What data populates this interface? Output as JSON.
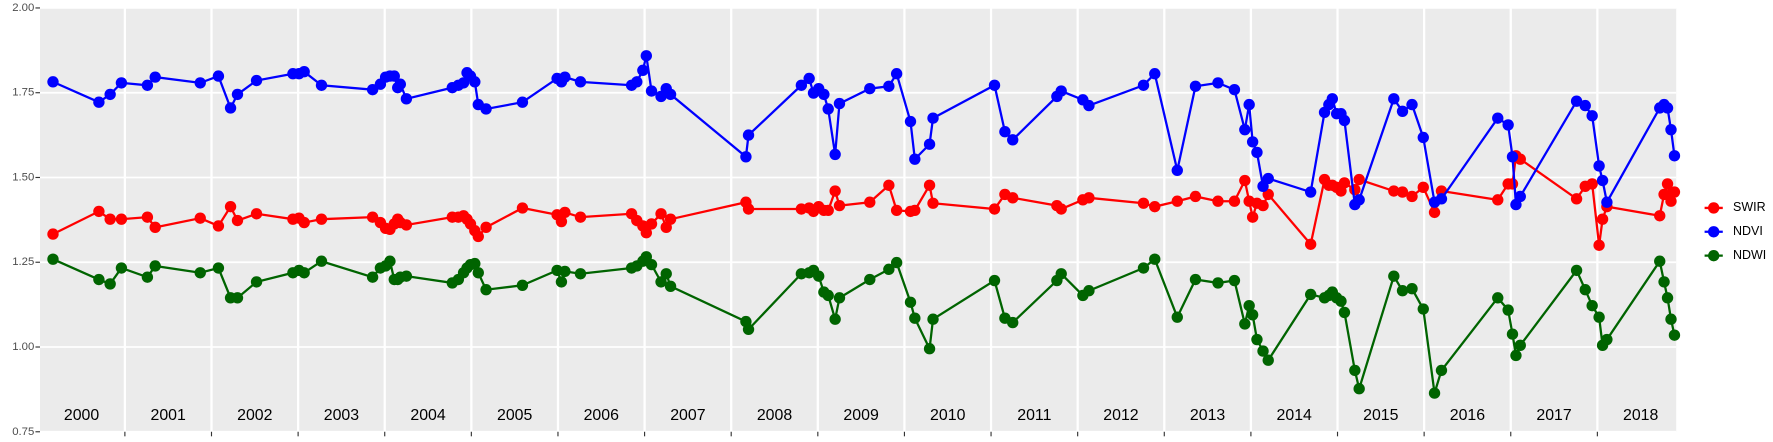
{
  "chart_data": {
    "type": "line",
    "x": [
      2000.17,
      2000.7,
      2000.83,
      2000.96,
      2001.26,
      2001.35,
      2001.87,
      2002.08,
      2002.22,
      2002.3,
      2002.52,
      2002.94,
      2003.01,
      2003.07,
      2003.27,
      2003.86,
      2003.95,
      2004.01,
      2004.06,
      2004.11,
      2004.15,
      2004.18,
      2004.25,
      2004.78,
      2004.85,
      2004.91,
      2004.95,
      2004.99,
      2005.04,
      2005.08,
      2005.17,
      2005.59,
      2005.99,
      2006.04,
      2006.08,
      2006.26,
      2006.85,
      2006.91,
      2006.98,
      2007.02,
      2007.08,
      2007.19,
      2007.25,
      2007.3,
      2008.17,
      2008.2,
      2008.81,
      2008.9,
      2008.95,
      2009.01,
      2009.07,
      2009.12,
      2009.2,
      2009.25,
      2009.6,
      2009.82,
      2009.91,
      2010.07,
      2010.12,
      2010.29,
      2010.33,
      2011.04,
      2011.16,
      2011.25,
      2011.76,
      2011.81,
      2012.06,
      2012.13,
      2012.76,
      2012.89,
      2013.15,
      2013.36,
      2013.62,
      2013.81,
      2013.93,
      2013.98,
      2014.02,
      2014.07,
      2014.14,
      2014.2,
      2014.69,
      2014.85,
      2014.9,
      2014.94,
      2014.99,
      2015.04,
      2015.08,
      2015.2,
      2015.25,
      2015.65,
      2015.75,
      2015.86,
      2015.99,
      2016.12,
      2016.2,
      2016.85,
      2016.97,
      2017.02,
      2017.06,
      2017.11,
      2017.76,
      2017.86,
      2017.94,
      2018.02,
      2018.06,
      2018.11,
      2018.72,
      2018.77,
      2018.81,
      2018.85,
      2018.89
    ],
    "series": [
      {
        "name": "SWIR",
        "color": "#ff0000",
        "values": [
          1.333,
          1.4,
          1.377,
          1.377,
          1.383,
          1.353,
          1.38,
          1.357,
          1.414,
          1.373,
          1.393,
          1.377,
          1.38,
          1.367,
          1.377,
          1.383,
          1.367,
          1.35,
          1.347,
          1.363,
          1.377,
          1.367,
          1.36,
          1.383,
          1.383,
          1.387,
          1.377,
          1.363,
          1.343,
          1.326,
          1.353,
          1.41,
          1.39,
          1.37,
          1.397,
          1.383,
          1.393,
          1.373,
          1.357,
          1.337,
          1.363,
          1.393,
          1.353,
          1.377,
          1.427,
          1.407,
          1.407,
          1.41,
          1.4,
          1.414,
          1.403,
          1.403,
          1.46,
          1.417,
          1.427,
          1.477,
          1.403,
          1.4,
          1.403,
          1.477,
          1.424,
          1.407,
          1.45,
          1.44,
          1.417,
          1.407,
          1.434,
          1.44,
          1.424,
          1.414,
          1.43,
          1.444,
          1.43,
          1.43,
          1.491,
          1.43,
          1.383,
          1.424,
          1.417,
          1.45,
          1.303,
          1.494,
          1.477,
          1.477,
          1.471,
          1.46,
          1.484,
          1.464,
          1.494,
          1.46,
          1.457,
          1.444,
          1.471,
          1.397,
          1.46,
          1.434,
          1.481,
          1.481,
          1.564,
          1.554,
          1.437,
          1.474,
          1.481,
          1.3,
          1.377,
          1.414,
          1.387,
          1.45,
          1.481,
          1.43,
          1.457
        ]
      },
      {
        "name": "NDVI",
        "color": "#0000ff",
        "values": [
          1.782,
          1.722,
          1.745,
          1.779,
          1.772,
          1.796,
          1.779,
          1.799,
          1.705,
          1.745,
          1.786,
          1.806,
          1.806,
          1.812,
          1.772,
          1.759,
          1.775,
          1.796,
          1.799,
          1.799,
          1.765,
          1.775,
          1.732,
          1.765,
          1.772,
          1.779,
          1.809,
          1.799,
          1.782,
          1.715,
          1.702,
          1.722,
          1.792,
          1.782,
          1.796,
          1.782,
          1.772,
          1.782,
          1.816,
          1.859,
          1.755,
          1.739,
          1.762,
          1.745,
          1.561,
          1.625,
          1.772,
          1.792,
          1.749,
          1.762,
          1.745,
          1.702,
          1.568,
          1.718,
          1.762,
          1.769,
          1.806,
          1.665,
          1.554,
          1.598,
          1.675,
          1.772,
          1.635,
          1.611,
          1.739,
          1.755,
          1.729,
          1.712,
          1.772,
          1.806,
          1.521,
          1.769,
          1.779,
          1.759,
          1.641,
          1.715,
          1.605,
          1.574,
          1.474,
          1.497,
          1.457,
          1.692,
          1.715,
          1.732,
          1.688,
          1.688,
          1.668,
          1.42,
          1.434,
          1.732,
          1.695,
          1.715,
          1.618,
          1.427,
          1.437,
          1.675,
          1.655,
          1.561,
          1.42,
          1.444,
          1.725,
          1.712,
          1.682,
          1.534,
          1.491,
          1.427,
          1.705,
          1.715,
          1.705,
          1.641,
          1.564
        ]
      },
      {
        "name": "NDWI",
        "color": "#006400",
        "values": [
          1.259,
          1.199,
          1.186,
          1.233,
          1.206,
          1.239,
          1.219,
          1.233,
          1.145,
          1.145,
          1.192,
          1.219,
          1.226,
          1.219,
          1.253,
          1.206,
          1.233,
          1.239,
          1.253,
          1.199,
          1.199,
          1.206,
          1.209,
          1.189,
          1.199,
          1.219,
          1.233,
          1.243,
          1.246,
          1.219,
          1.169,
          1.182,
          1.226,
          1.192,
          1.223,
          1.216,
          1.233,
          1.239,
          1.253,
          1.266,
          1.243,
          1.192,
          1.216,
          1.179,
          1.075,
          1.052,
          1.216,
          1.219,
          1.226,
          1.209,
          1.162,
          1.152,
          1.082,
          1.145,
          1.199,
          1.229,
          1.249,
          1.132,
          1.085,
          0.995,
          1.082,
          1.196,
          1.085,
          1.072,
          1.196,
          1.216,
          1.152,
          1.166,
          1.233,
          1.259,
          1.088,
          1.199,
          1.189,
          1.196,
          1.068,
          1.122,
          1.095,
          1.022,
          0.988,
          0.961,
          1.155,
          1.145,
          1.152,
          1.162,
          1.145,
          1.135,
          1.102,
          0.931,
          0.877,
          1.209,
          1.166,
          1.172,
          1.112,
          0.864,
          0.931,
          1.145,
          1.109,
          1.038,
          0.975,
          1.005,
          1.226,
          1.169,
          1.122,
          1.088,
          1.005,
          1.022,
          1.253,
          1.192,
          1.145,
          1.082,
          1.035
        ]
      }
    ],
    "xlim": [
      2000.02,
      2018.91
    ],
    "xticks": [
      2001,
      2002,
      2003,
      2004,
      2005,
      2006,
      2007,
      2008,
      2009,
      2010,
      2011,
      2012,
      2013,
      2014,
      2015,
      2016,
      2017,
      2018
    ],
    "year_labels": [
      "2000",
      "2001",
      "2002",
      "2003",
      "2004",
      "2005",
      "2006",
      "2007",
      "2008",
      "2009",
      "2010",
      "2011",
      "2012",
      "2013",
      "2014",
      "2015",
      "2016",
      "2017",
      "2018"
    ],
    "ylim": [
      0.75,
      2.0
    ],
    "yticks": [
      {
        "value": 0.75,
        "label": "0.75"
      },
      {
        "value": 1.0,
        "label": "1.00"
      },
      {
        "value": 1.25,
        "label": "1.25"
      },
      {
        "value": 1.5,
        "label": "1.50"
      },
      {
        "value": 1.75,
        "label": "1.75"
      },
      {
        "value": 2.0,
        "label": "2.00"
      }
    ],
    "grid": true,
    "legend": "right"
  }
}
